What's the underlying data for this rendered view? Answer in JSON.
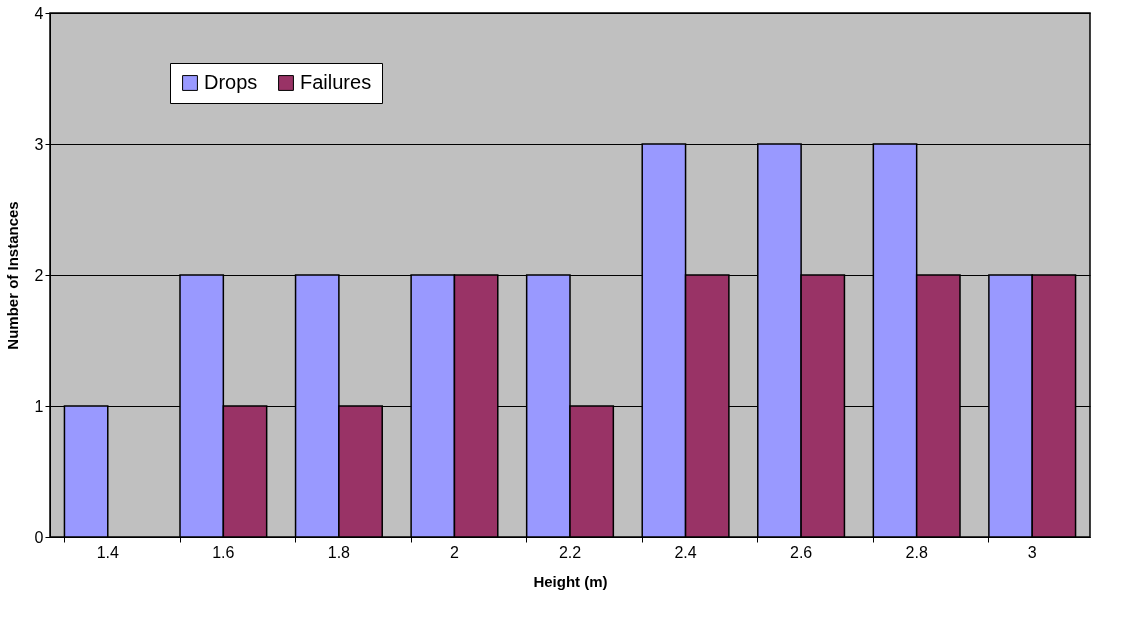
{
  "chart_data": {
    "type": "bar",
    "xlabel": "Height (m)",
    "ylabel": "Number of Instances",
    "categories": [
      "1.4",
      "1.6",
      "1.8",
      "2",
      "2.2",
      "2.4",
      "2.6",
      "2.8",
      "3"
    ],
    "series": [
      {
        "name": "Drops",
        "color": "#9999ff",
        "values": [
          1,
          2,
          2,
          2,
          2,
          3,
          3,
          3,
          2
        ]
      },
      {
        "name": "Failures",
        "color": "#993366",
        "values": [
          null,
          1,
          1,
          2,
          1,
          2,
          2,
          2,
          2
        ]
      }
    ],
    "ylim": [
      0,
      4
    ],
    "yticks": [
      0,
      1,
      2,
      3,
      4
    ],
    "grid": "y",
    "legend": "top left"
  }
}
